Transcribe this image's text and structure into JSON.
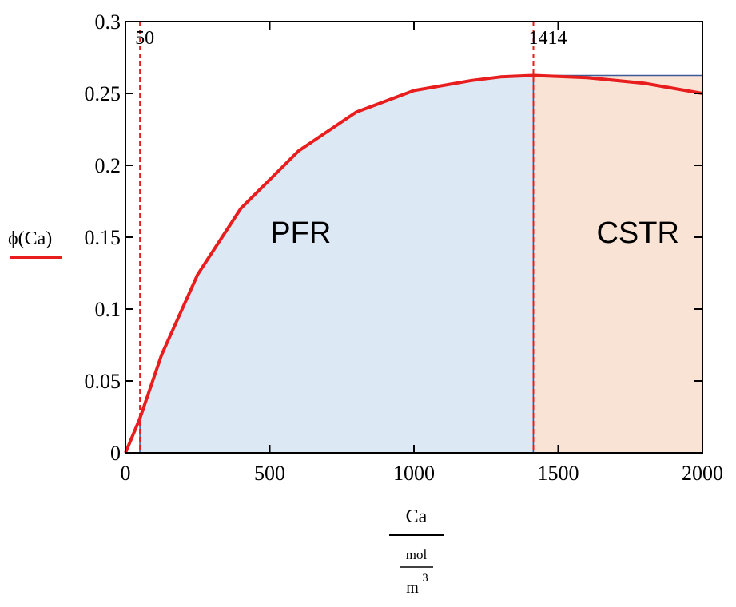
{
  "chart_data": {
    "type": "area",
    "x": [
      0,
      50,
      125,
      250,
      400,
      600,
      800,
      1000,
      1200,
      1300,
      1414,
      1600,
      1800,
      2000
    ],
    "series": [
      {
        "name": "ϕ(Ca)",
        "values": [
          0,
          0.024,
          0.068,
          0.124,
          0.17,
          0.21,
          0.237,
          0.252,
          0.259,
          0.2615,
          0.2625,
          0.261,
          0.257,
          0.25
        ],
        "color": "#e81e1e"
      }
    ],
    "regions": [
      {
        "label": "PFR",
        "x_from": 50,
        "x_to": 1414,
        "color": "#dde8f5"
      },
      {
        "label": "CSTR",
        "x_from": 1414,
        "x_to": 2000,
        "color": "#f9e3d5"
      }
    ],
    "vlines": [
      {
        "x": 50,
        "label": "50",
        "color": "#e81e1e"
      },
      {
        "x": 1414,
        "label": "1414",
        "color": "#e81e1e"
      }
    ],
    "xlim": [
      0,
      2000
    ],
    "ylim": [
      0,
      0.3
    ],
    "xticks": [
      0,
      500,
      1000,
      1500,
      2000
    ],
    "yticks": [
      0,
      0.05,
      0.1,
      0.15,
      0.2,
      0.25,
      0.3
    ],
    "xtick_labels": [
      "0",
      "500",
      "1000",
      "1500",
      "2000"
    ],
    "ytick_labels": [
      "0",
      "0.05",
      "0.1",
      "0.15",
      "0.2",
      "0.25",
      "0.3"
    ],
    "ylabel": "ϕ(Ca)",
    "xlabel": {
      "numerator": "Ca",
      "unit_top": "mol",
      "unit_bottom": "m",
      "unit_exp": "3"
    },
    "grid": false,
    "legend": "none"
  }
}
